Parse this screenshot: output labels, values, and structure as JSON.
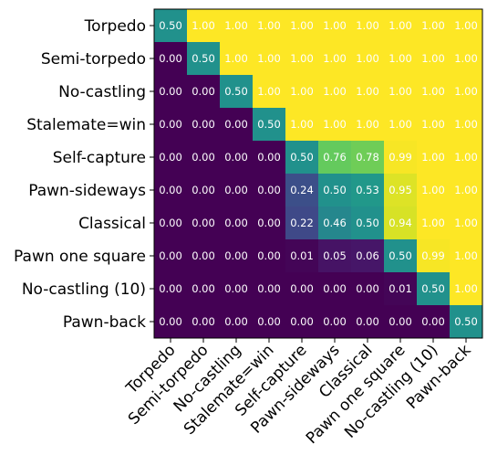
{
  "chart_data": {
    "type": "heatmap",
    "title": "",
    "xlabel": "",
    "ylabel": "",
    "row_labels": [
      "Torpedo",
      "Semi-torpedo",
      "No-castling",
      "Stalemate=win",
      "Self-capture",
      "Pawn-sideways",
      "Classical",
      "Pawn one square",
      "No-castling (10)",
      "Pawn-back"
    ],
    "col_labels": [
      "Torpedo",
      "Semi-torpedo",
      "No-castling",
      "Stalemate=win",
      "Self-capture",
      "Pawn-sideways",
      "Classical",
      "Pawn one square",
      "No-castling (10)",
      "Pawn-back"
    ],
    "values": [
      [
        0.5,
        1.0,
        1.0,
        1.0,
        1.0,
        1.0,
        1.0,
        1.0,
        1.0,
        1.0
      ],
      [
        0.0,
        0.5,
        1.0,
        1.0,
        1.0,
        1.0,
        1.0,
        1.0,
        1.0,
        1.0
      ],
      [
        0.0,
        0.0,
        0.5,
        1.0,
        1.0,
        1.0,
        1.0,
        1.0,
        1.0,
        1.0
      ],
      [
        0.0,
        0.0,
        0.0,
        0.5,
        1.0,
        1.0,
        1.0,
        1.0,
        1.0,
        1.0
      ],
      [
        0.0,
        0.0,
        0.0,
        0.0,
        0.5,
        0.76,
        0.78,
        0.99,
        1.0,
        1.0
      ],
      [
        0.0,
        0.0,
        0.0,
        0.0,
        0.24,
        0.5,
        0.53,
        0.95,
        1.0,
        1.0
      ],
      [
        0.0,
        0.0,
        0.0,
        0.0,
        0.22,
        0.46,
        0.5,
        0.94,
        1.0,
        1.0
      ],
      [
        0.0,
        0.0,
        0.0,
        0.0,
        0.01,
        0.05,
        0.06,
        0.5,
        0.99,
        1.0
      ],
      [
        0.0,
        0.0,
        0.0,
        0.0,
        0.0,
        0.0,
        0.0,
        0.01,
        0.5,
        1.0
      ],
      [
        0.0,
        0.0,
        0.0,
        0.0,
        0.0,
        0.0,
        0.0,
        0.0,
        0.0,
        0.5
      ]
    ],
    "value_range": [
      0,
      1
    ],
    "colormap": "viridis",
    "grid": false,
    "legend": "none"
  }
}
